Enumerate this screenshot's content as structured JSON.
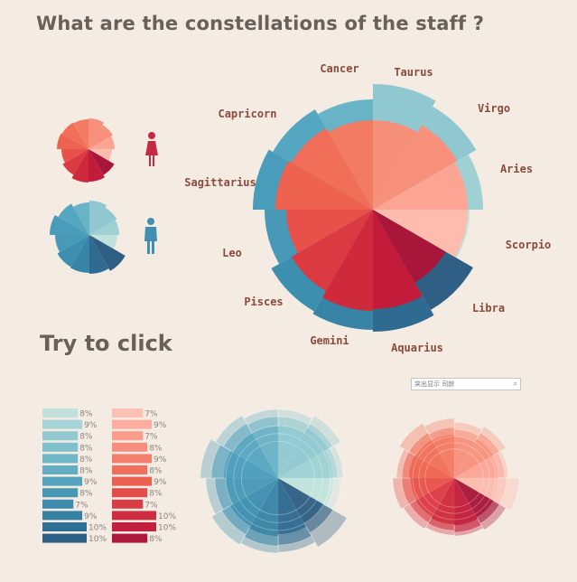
{
  "title": "What are the constellations of the staff ?",
  "try_text": "Try to click",
  "search_placeholder": "突出显示 司龄",
  "colors": {
    "background": "#f4ece2",
    "female_icon": "#c42a45",
    "male_icon": "#3e8fb0"
  },
  "chart_data": {
    "type": "radial-bar",
    "main": {
      "signs": [
        "Cancer",
        "Taurus",
        "Virgo",
        "Aries",
        "Scorpio",
        "Libra",
        "Aquarius",
        "Gemini",
        "Pisces",
        "Leo",
        "Sagittarius",
        "Capricorn"
      ],
      "male_fill": [
        "#8fc8d0",
        "#8fc8d0",
        "#9fd1d4",
        "#bfe3dc",
        "#2f5f84",
        "#2f6a90",
        "#3784a6",
        "#3d8fb0",
        "#4898b8",
        "#4a9cbb",
        "#55a6c0",
        "#68b3c6"
      ],
      "female_fill": [
        "#f7907b",
        "#f7917c",
        "#fca595",
        "#fdbcae",
        "#a8163a",
        "#c21c3a",
        "#cf2a3c",
        "#dc3a43",
        "#e8514a",
        "#ee634f",
        "#f16f58",
        "#f37a63"
      ]
    },
    "bars": {
      "male": {
        "values": [
          8,
          9,
          8,
          8,
          8,
          8,
          9,
          8,
          7,
          9,
          10,
          10
        ],
        "labels": [
          "8%",
          "9%",
          "8%",
          "8%",
          "8%",
          "8%",
          "9%",
          "8%",
          "7%",
          "9%",
          "10%",
          "10%"
        ],
        "colors": [
          "#c2e1dd",
          "#a6d3d6",
          "#91c8d1",
          "#80c0cd",
          "#70b8c8",
          "#62afc3",
          "#55a4bd",
          "#4898b5",
          "#3e8bad",
          "#3680a4",
          "#2f6f96",
          "#2c5f86"
        ]
      },
      "female": {
        "values": [
          7,
          9,
          7,
          8,
          9,
          8,
          9,
          8,
          7,
          10,
          10,
          8
        ],
        "labels": [
          "7%",
          "9%",
          "7%",
          "8%",
          "9%",
          "8%",
          "9%",
          "8%",
          "7%",
          "10%",
          "10%",
          "8%"
        ],
        "colors": [
          "#fdc1b4",
          "#fcad9f",
          "#fa9d8b",
          "#f88e7d",
          "#f47e6d",
          "#f06f5e",
          "#eb5f51",
          "#e34d49",
          "#d83c44",
          "#cf2d42",
          "#c1203f",
          "#b0183b"
        ]
      }
    }
  }
}
